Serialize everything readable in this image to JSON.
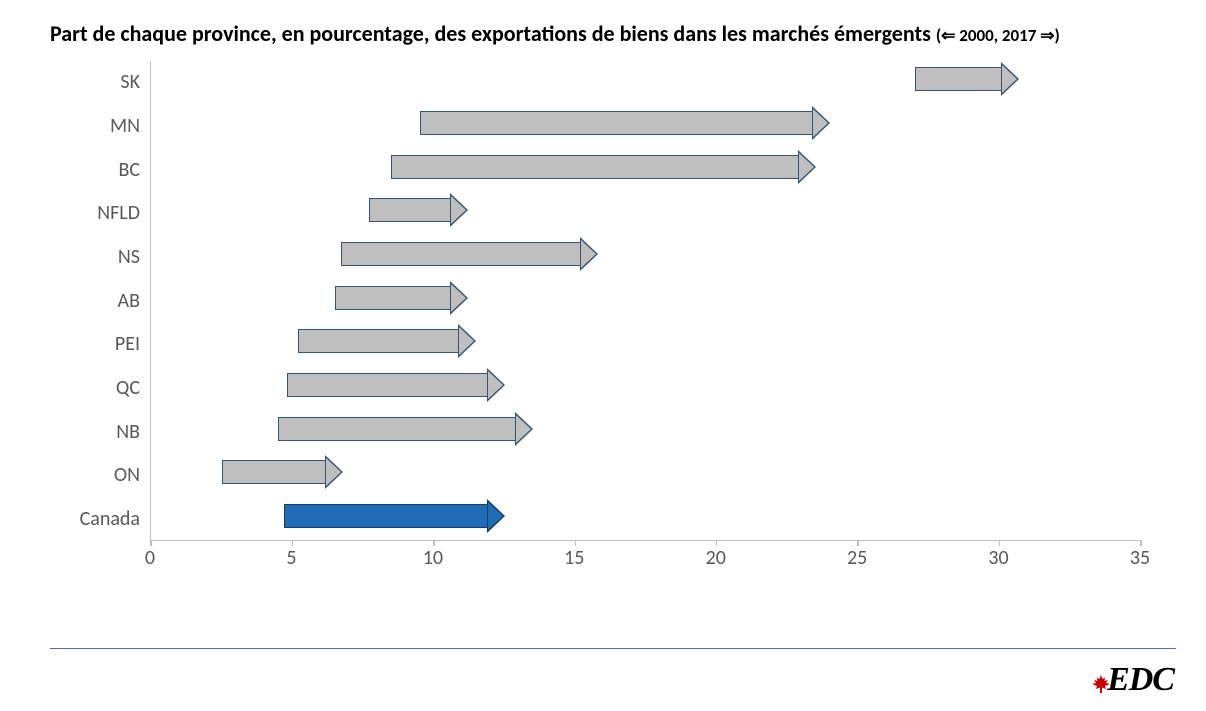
{
  "title": {
    "main": "Part de chaque province, en pourcentage, des exportations de biens dans les marchés émergents",
    "sub": "(⇐ 2000, 2017 ⇒)",
    "fontsize": 22,
    "sub_fontsize": 17,
    "color": "#000000",
    "weight": "bold"
  },
  "chart": {
    "type": "arrow-range",
    "xlim": [
      0,
      35
    ],
    "xtick_step": 5,
    "xticks": [
      0,
      5,
      10,
      15,
      20,
      25,
      30,
      35
    ],
    "axis_color": "#bfbfbf",
    "label_color": "#595959",
    "label_fontsize": 20,
    "background_color": "#ffffff",
    "categories": [
      "SK",
      "MN",
      "BC",
      "NFLD",
      "NS",
      "AB",
      "PEI",
      "QC",
      "NB",
      "ON",
      "Canada"
    ],
    "series": [
      {
        "label": "SK",
        "start": 27.0,
        "end": 30.7,
        "fill": "#bfbfbf",
        "border": "#375472"
      },
      {
        "label": "MN",
        "start": 9.5,
        "end": 24.0,
        "fill": "#bfbfbf",
        "border": "#375472"
      },
      {
        "label": "BC",
        "start": 8.5,
        "end": 23.5,
        "fill": "#bfbfbf",
        "border": "#375472"
      },
      {
        "label": "NFLD",
        "start": 7.7,
        "end": 11.2,
        "fill": "#bfbfbf",
        "border": "#375472"
      },
      {
        "label": "NS",
        "start": 6.7,
        "end": 15.8,
        "fill": "#bfbfbf",
        "border": "#375472"
      },
      {
        "label": "AB",
        "start": 6.5,
        "end": 11.2,
        "fill": "#bfbfbf",
        "border": "#375472"
      },
      {
        "label": "PEI",
        "start": 5.2,
        "end": 11.5,
        "fill": "#bfbfbf",
        "border": "#375472"
      },
      {
        "label": "QC",
        "start": 4.8,
        "end": 12.5,
        "fill": "#bfbfbf",
        "border": "#375472"
      },
      {
        "label": "NB",
        "start": 4.5,
        "end": 13.5,
        "fill": "#bfbfbf",
        "border": "#375472"
      },
      {
        "label": "ON",
        "start": 2.5,
        "end": 6.8,
        "fill": "#bfbfbf",
        "border": "#375472"
      },
      {
        "label": "Canada",
        "start": 4.7,
        "end": 12.5,
        "fill": "#1f6bb5",
        "border": "#163d66"
      }
    ],
    "arrow_bar_height": 24,
    "arrow_head_width": 18,
    "arrow_border_width": 1.5
  },
  "footer": {
    "rule_color": "#4472c4",
    "logo_text": "EDC",
    "logo_color": "#000000",
    "leaf_color": "#cc0000"
  }
}
